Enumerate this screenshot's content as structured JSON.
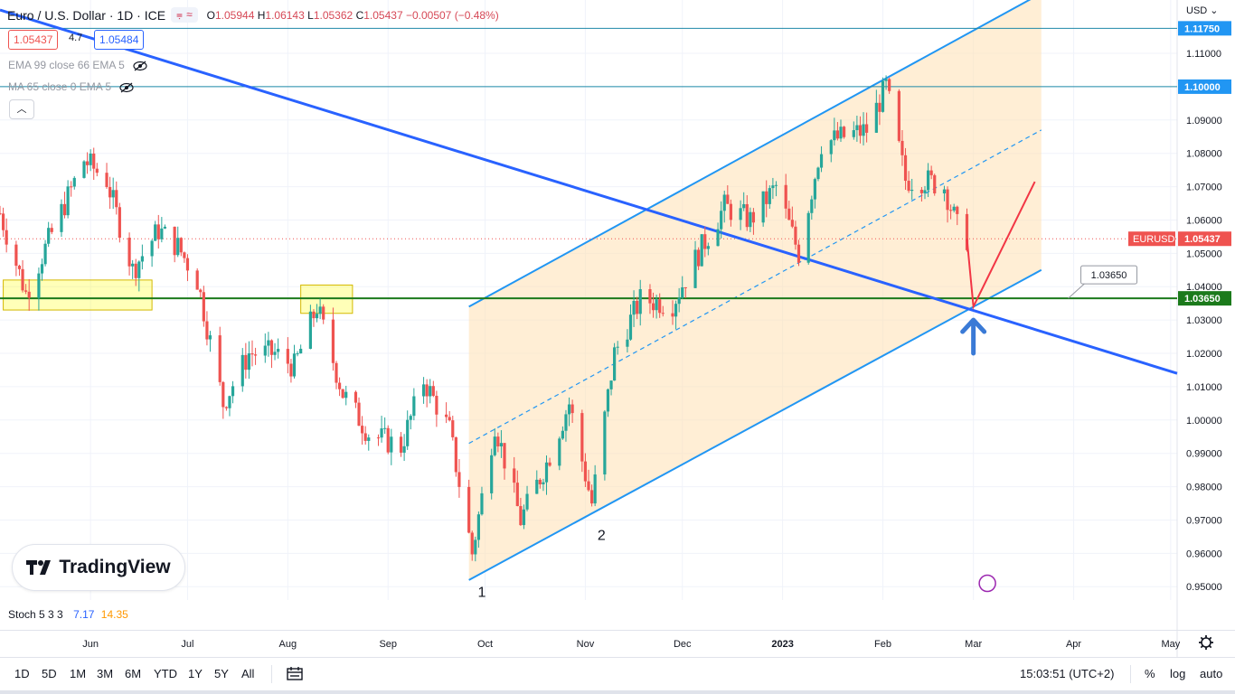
{
  "header": {
    "symbol": "Euro / U.S. Dollar · 1D · ICE",
    "open_label": "O",
    "open": "1.05944",
    "high_label": "H",
    "high": "1.06143",
    "low_label": "L",
    "low": "1.05362",
    "close_label": "C",
    "close": "1.05437",
    "change": "−0.00507 (−0.48%)",
    "chip_icons": [
      "equals-icon",
      "approx-icon"
    ]
  },
  "prices": {
    "bid": "1.05437",
    "spread": "4.7",
    "ask": "1.05484"
  },
  "indicators": [
    {
      "label": "EMA 99 close 66 EMA 5"
    },
    {
      "label": "MA 65 close 0 EMA 5"
    }
  ],
  "currency": "USD",
  "watermark": "TradingView",
  "stoch": {
    "label": "Stoch 5 3 3",
    "k": "7.17",
    "d": "14.35"
  },
  "toolbar": {
    "ranges": [
      "1D",
      "5D",
      "1M",
      "3M",
      "6M",
      "YTD",
      "1Y",
      "5Y",
      "All"
    ],
    "time": "15:03:51 (UTC+2)",
    "pct": "%",
    "log": "log",
    "auto": "auto"
  },
  "colors": {
    "up": "#26a69a",
    "down": "#ef5350",
    "trend": "#2962ff",
    "channel": "#2196f3",
    "support": "#1b7a1b",
    "box": "#ffff00",
    "fill": "#ffe0b2"
  },
  "chart_data": {
    "type": "candlestick",
    "title": "Euro / U.S. Dollar · 1D · ICE",
    "ylabel": "USD",
    "ylim": [
      0.946,
      1.126
    ],
    "y_ticks": [
      "1.11000",
      "1.10000",
      "1.09000",
      "1.08000",
      "1.07000",
      "1.06000",
      "1.05000",
      "1.04000",
      "1.03000",
      "1.02000",
      "1.01000",
      "1.00000",
      "0.99000",
      "0.98000",
      "0.97000",
      "0.96000",
      "0.95000"
    ],
    "x_tick_labels": [
      "Jun",
      "Jul",
      "Aug",
      "Sep",
      "Oct",
      "Nov",
      "Dec",
      "2023",
      "Feb",
      "Mar",
      "Apr",
      "May"
    ],
    "x_ticks": [
      "2022-06-01",
      "2022-07-01",
      "2022-08-01",
      "2022-09-01",
      "2022-10-01",
      "2022-11-01",
      "2022-12-01",
      "2023-01-01",
      "2023-02-01",
      "2023-03-01",
      "2023-04-01",
      "2023-05-01"
    ],
    "x_range": [
      "2022-05-04",
      "2023-05-03"
    ],
    "ohlc_close_path": [
      [
        "2022-05-04",
        1.062
      ],
      [
        "2022-05-12",
        1.038
      ],
      [
        "2022-05-20",
        1.056
      ],
      [
        "2022-05-30",
        1.078
      ],
      [
        "2022-06-06",
        1.072
      ],
      [
        "2022-06-14",
        1.045
      ],
      [
        "2022-06-22",
        1.057
      ],
      [
        "2022-06-28",
        1.052
      ],
      [
        "2022-07-04",
        1.042
      ],
      [
        "2022-07-12",
        1.005
      ],
      [
        "2022-07-20",
        1.02
      ],
      [
        "2022-07-28",
        1.02
      ],
      [
        "2022-08-03",
        1.016
      ],
      [
        "2022-08-10",
        1.034
      ],
      [
        "2022-08-18",
        1.008
      ],
      [
        "2022-08-26",
        0.996
      ],
      [
        "2022-09-05",
        0.992
      ],
      [
        "2022-09-12",
        1.012
      ],
      [
        "2022-09-20",
        0.997
      ],
      [
        "2022-09-27",
        0.96
      ],
      [
        "2022-10-04",
        0.999
      ],
      [
        "2022-10-12",
        0.97
      ],
      [
        "2022-10-20",
        0.987
      ],
      [
        "2022-10-27",
        1.005
      ],
      [
        "2022-11-03",
        0.975
      ],
      [
        "2022-11-10",
        1.02
      ],
      [
        "2022-11-18",
        1.036
      ],
      [
        "2022-11-28",
        1.035
      ],
      [
        "2022-12-06",
        1.05
      ],
      [
        "2022-12-14",
        1.064
      ],
      [
        "2022-12-22",
        1.06
      ],
      [
        "2022-12-30",
        1.07
      ],
      [
        "2023-01-06",
        1.05
      ],
      [
        "2023-01-13",
        1.083
      ],
      [
        "2023-01-20",
        1.085
      ],
      [
        "2023-01-27",
        1.087
      ],
      [
        "2023-02-02",
        1.1
      ],
      [
        "2023-02-08",
        1.072
      ],
      [
        "2023-02-14",
        1.072
      ],
      [
        "2023-02-20",
        1.07
      ],
      [
        "2023-02-24",
        1.058
      ],
      [
        "2023-02-27",
        1.0544
      ]
    ],
    "annotations": [
      {
        "type": "hline",
        "price": 1.1175,
        "label": "1.11750"
      },
      {
        "type": "hline",
        "price": 1.1,
        "label": "1.10000"
      },
      {
        "type": "hline",
        "price": 1.0365,
        "label": "1.03650"
      },
      {
        "type": "last_price",
        "price": 1.05437,
        "label": "1.05437",
        "symbol": "EURUSD"
      },
      {
        "type": "callout",
        "label": "1.03650"
      },
      {
        "type": "wave_label",
        "label": "1"
      },
      {
        "type": "wave_label",
        "label": "2"
      }
    ],
    "ascending_channel": {
      "lower": [
        [
          "2022-09-26",
          0.952
        ],
        [
          "2023-03-22",
          1.045
        ]
      ],
      "upper": [
        [
          "2022-09-26",
          1.034
        ],
        [
          "2023-03-22",
          1.128
        ]
      ],
      "mid": [
        [
          "2022-09-26",
          0.993
        ],
        [
          "2023-03-22",
          1.087
        ]
      ]
    },
    "downtrend_line": [
      [
        "2022-05-04",
        1.123
      ],
      [
        "2023-05-03",
        1.014
      ]
    ],
    "support_zones": [
      {
        "start": "2022-05-05",
        "end": "2022-06-20",
        "low": 1.033,
        "high": 1.042
      },
      {
        "start": "2022-08-05",
        "end": "2022-08-21",
        "low": 1.032,
        "high": 1.0405
      }
    ],
    "forecast_path": [
      [
        "2023-02-27",
        1.0544
      ],
      [
        "2023-03-01",
        1.034
      ],
      [
        "2023-03-20",
        1.0715
      ]
    ],
    "legend": "top-left",
    "grid": true
  }
}
